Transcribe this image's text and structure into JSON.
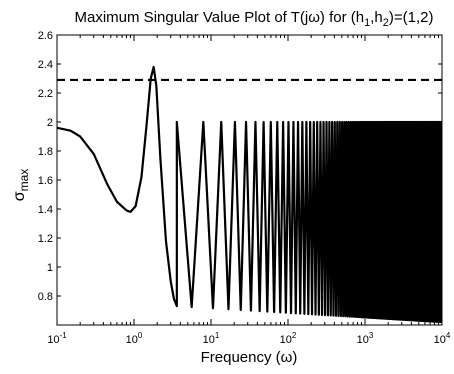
{
  "chart_data": {
    "type": "line",
    "title": {
      "text": "Maximum Singular Value Plot of T(jω) for (h",
      "sub1": "1",
      "mid": ",h",
      "sub2": "2",
      "tail": ")=(1,2)"
    },
    "xlabel": "Frequency (ω)",
    "ylabel": {
      "main": "σ",
      "sub": "max"
    },
    "x_scale": "log",
    "xlim": [
      0.1,
      10000
    ],
    "ylim": [
      0.6,
      2.6
    ],
    "x_ticks": [
      {
        "base": "10",
        "exp": "-1"
      },
      {
        "base": "10",
        "exp": "0"
      },
      {
        "base": "10",
        "exp": "1"
      },
      {
        "base": "10",
        "exp": "2"
      },
      {
        "base": "10",
        "exp": "3"
      },
      {
        "base": "10",
        "exp": "4"
      }
    ],
    "y_ticks": [
      "0.8",
      "1",
      "1.2",
      "1.4",
      "1.6",
      "1.8",
      "2",
      "2.2",
      "2.4",
      "2.6"
    ],
    "grid": false,
    "series": [
      {
        "style": "solid",
        "smooth_x": [
          0.1,
          0.15,
          0.2,
          0.3,
          0.45,
          0.6,
          0.8,
          0.9,
          1.05,
          1.25,
          1.45,
          1.65,
          1.8,
          1.95,
          2.2,
          2.6,
          3.0,
          3.3,
          3.6
        ],
        "smooth_y": [
          1.96,
          1.94,
          1.9,
          1.78,
          1.57,
          1.45,
          1.39,
          1.38,
          1.42,
          1.62,
          1.97,
          2.3,
          2.38,
          2.25,
          1.75,
          1.18,
          0.9,
          0.78,
          0.73
        ],
        "oscillation": {
          "x_range": [
            3.6,
            10000
          ],
          "max_y": 2.0,
          "min_y_start": 0.73,
          "min_y_end": 0.62
        }
      },
      {
        "style": "dashed",
        "x": [
          0.1,
          10000
        ],
        "y": [
          2.29,
          2.29
        ]
      }
    ]
  }
}
